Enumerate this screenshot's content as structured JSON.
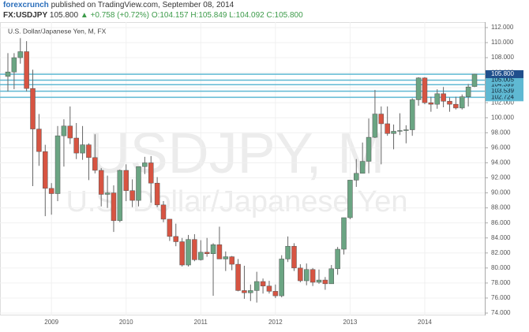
{
  "header": {
    "brand": "forexcrunch",
    "published": "published on TradingView.com, September 08, 2014",
    "symbol": "FX:USDJPY",
    "last": "105.800",
    "change": "▲ +0.758 (+0.72%)",
    "open": "O:104.157",
    "high": "H:105.849",
    "low": "L:104.092",
    "close": "C:105.800"
  },
  "chart_data": {
    "type": "candlestick",
    "title": "U.S. Dollar/Japanese Yen, M, FX",
    "watermark": "USDJPY, M",
    "watermark_subtitle": "U.S. Dollar/Japanese Yen",
    "categories": [
      null,
      null,
      null,
      null,
      null,
      null,
      null,
      "2009",
      null,
      null,
      null,
      null,
      null,
      null,
      null,
      null,
      null,
      null,
      null,
      "2010",
      null,
      null,
      null,
      null,
      null,
      null,
      null,
      null,
      null,
      null,
      null,
      "2011",
      null,
      null,
      null,
      null,
      null,
      null,
      null,
      null,
      null,
      null,
      null,
      "2012",
      null,
      null,
      null,
      null,
      null,
      null,
      null,
      null,
      null,
      null,
      null,
      "2013",
      null,
      null,
      null,
      null,
      null,
      null,
      null,
      null,
      null,
      null,
      null,
      "2014",
      null,
      null,
      null,
      null,
      null,
      null,
      null,
      null
    ],
    "open": [
      105.5,
      106.1,
      108.0,
      108.8,
      103.9,
      98.5,
      95.5,
      90.6,
      89.9,
      97.6,
      98.9,
      97.3,
      95.3,
      96.4,
      94.7,
      93.0,
      89.8,
      90.0,
      86.3,
      93.0,
      90.3,
      89.0,
      93.5,
      94.0,
      91.3,
      88.4,
      86.5,
      84.2,
      83.5,
      80.4,
      83.8,
      81.1,
      82.1,
      81.9,
      83.1,
      81.2,
      81.5,
      80.5,
      77.0,
      76.7,
      77.0,
      78.2,
      77.6,
      76.9,
      76.3,
      81.2,
      82.9,
      80.0,
      78.3,
      79.8,
      78.1,
      78.4,
      77.9,
      79.9,
      82.5,
      86.7,
      91.7,
      92.6,
      94.2,
      97.4,
      100.5,
      99.2,
      97.9,
      98.2,
      98.3,
      98.4,
      102.4,
      105.3,
      102.0,
      101.8,
      103.2,
      102.2,
      101.8,
      101.3,
      102.8,
      104.157
    ],
    "high": [
      108.6,
      108.6,
      110.6,
      110.2,
      106.4,
      100.5,
      96.4,
      91.3,
      98.9,
      99.8,
      101.5,
      99.3,
      98.9,
      96.6,
      97.8,
      93.3,
      92.3,
      91.0,
      93.1,
      93.8,
      91.8,
      93.5,
      94.8,
      94.9,
      92.1,
      88.9,
      86.5,
      85.9,
      84.0,
      84.4,
      84.5,
      83.7,
      84.0,
      83.3,
      85.5,
      82.2,
      81.6,
      81.2,
      80.3,
      77.8,
      79.5,
      78.6,
      78.3,
      77.8,
      81.7,
      84.2,
      83.3,
      80.5,
      80.6,
      80.0,
      79.8,
      78.8,
      80.4,
      82.8,
      86.7,
      91.7,
      94.5,
      96.7,
      99.9,
      103.7,
      101.5,
      101.5,
      99.1,
      100.6,
      99.0,
      102.6,
      105.4,
      105.4,
      102.8,
      103.8,
      104.1,
      102.7,
      102.8,
      103.1,
      104.5,
      105.849
    ],
    "low": [
      103.5,
      103.8,
      107.2,
      103.5,
      90.9,
      93.6,
      86.9,
      87.1,
      88.9,
      93.5,
      96.5,
      94.5,
      94.4,
      91.7,
      92.6,
      88.2,
      88.0,
      84.8,
      86.1,
      88.9,
      88.1,
      88.2,
      92.5,
      88.7,
      88.1,
      86.1,
      83.6,
      82.9,
      80.2,
      80.2,
      80.9,
      81.0,
      81.5,
      76.3,
      81.2,
      79.6,
      79.7,
      76.9,
      75.9,
      75.6,
      75.4,
      76.6,
      76.6,
      76.0,
      76.1,
      80.8,
      79.6,
      78.1,
      77.7,
      77.6,
      77.9,
      77.1,
      77.9,
      79.1,
      81.8,
      86.5,
      90.8,
      92.6,
      92.6,
      97.3,
      93.8,
      97.6,
      95.8,
      97.7,
      96.6,
      97.6,
      101.6,
      101.8,
      100.8,
      101.2,
      101.4,
      100.8,
      101.1,
      101.1,
      101.5,
      104.092
    ],
    "close": [
      106.1,
      108.0,
      108.8,
      103.9,
      98.5,
      95.5,
      90.6,
      89.9,
      97.6,
      98.9,
      97.3,
      95.3,
      96.4,
      94.7,
      93.0,
      89.8,
      90.0,
      86.3,
      93.0,
      90.3,
      89.0,
      93.5,
      94.0,
      91.3,
      88.4,
      86.5,
      84.2,
      83.5,
      80.4,
      83.8,
      81.1,
      82.1,
      81.9,
      83.1,
      81.2,
      81.5,
      80.5,
      77.0,
      76.7,
      77.0,
      78.2,
      77.6,
      76.9,
      76.3,
      81.2,
      82.9,
      80.0,
      78.3,
      79.8,
      78.1,
      78.4,
      77.9,
      79.9,
      82.5,
      86.7,
      91.7,
      92.6,
      94.2,
      97.4,
      100.5,
      99.2,
      97.9,
      98.2,
      98.3,
      98.4,
      102.4,
      105.3,
      102.0,
      101.8,
      103.2,
      102.2,
      101.8,
      101.3,
      102.8,
      104.1,
      105.8
    ],
    "up_color": "#6ba583",
    "down_color": "#d75442",
    "levels": [
      {
        "value": 105.8,
        "label": "105.800"
      },
      {
        "value": 105.005,
        "label": "105.005"
      },
      {
        "value": 104.399,
        "label": "104.399"
      },
      {
        "value": 103.539,
        "label": "103.539"
      },
      {
        "value": 102.724,
        "label": "102.724"
      }
    ],
    "level_color": "#5fb9d3",
    "last_color": "#1f4f8c",
    "ylim": [
      74,
      112
    ],
    "yticks": [
      {
        "value": 74,
        "label": "74.000"
      },
      {
        "value": 76,
        "label": "76.000"
      },
      {
        "value": 78,
        "label": "78.000"
      },
      {
        "value": 80,
        "label": "80.000"
      },
      {
        "value": 82,
        "label": "82.000"
      },
      {
        "value": 84,
        "label": "84.000"
      },
      {
        "value": 86,
        "label": "86.000"
      },
      {
        "value": 88,
        "label": "88.000"
      },
      {
        "value": 90,
        "label": "90.000"
      },
      {
        "value": 92,
        "label": "92.000"
      },
      {
        "value": 94,
        "label": "94.000"
      },
      {
        "value": 96,
        "label": "96.000"
      },
      {
        "value": 98,
        "label": "98.000"
      },
      {
        "value": 100,
        "label": "100.000"
      },
      {
        "value": 102,
        "label": "102.000"
      },
      {
        "value": 104,
        "label": "104.000"
      },
      {
        "value": 106,
        "label": "106.000"
      },
      {
        "value": 108,
        "label": "108.000"
      },
      {
        "value": 110,
        "label": "110.000"
      },
      {
        "value": 112,
        "label": "112.000"
      }
    ],
    "grid": true
  }
}
